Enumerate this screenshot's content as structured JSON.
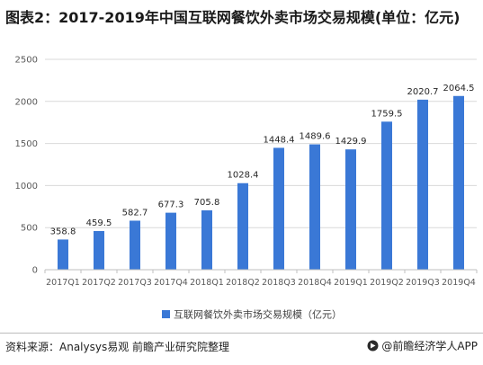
{
  "title": "图表2：2017-2019年中国互联网餐饮外卖市场交易规模(单位：亿元)",
  "source": "资料来源：Analysys易观 前瞻产业研究院整理",
  "brand": "@前瞻经济学人APP",
  "colors": {
    "bar": "#3a78d6",
    "grid": "#d9d9d9",
    "axis": "#bfbfbf"
  },
  "chart_data": {
    "type": "bar",
    "categories": [
      "2017Q1",
      "2017Q2",
      "2017Q3",
      "2017Q4",
      "2018Q1",
      "2018Q2",
      "2018Q3",
      "2018Q4",
      "2019Q1",
      "2019Q2",
      "2019Q3",
      "2019Q4"
    ],
    "series": [
      {
        "name": "互联网餐饮外卖市场交易规模（亿元）",
        "values": [
          358.8,
          459.5,
          582.7,
          677.3,
          705.8,
          1028.4,
          1448.4,
          1489.6,
          1429.9,
          1759.5,
          2020.7,
          2064.5
        ]
      }
    ],
    "data_labels": [
      "358.8",
      "459.5",
      "582.7",
      "677.3",
      "705.8",
      "1028.4",
      "1448.4",
      "1489.6",
      "1429.9",
      "1759.5",
      "2020.7",
      "2064.5"
    ],
    "yticks": [
      0,
      500,
      1000,
      1500,
      2000,
      2500
    ],
    "ylim": [
      0,
      2500
    ],
    "grid": true,
    "legend": "bottom"
  }
}
